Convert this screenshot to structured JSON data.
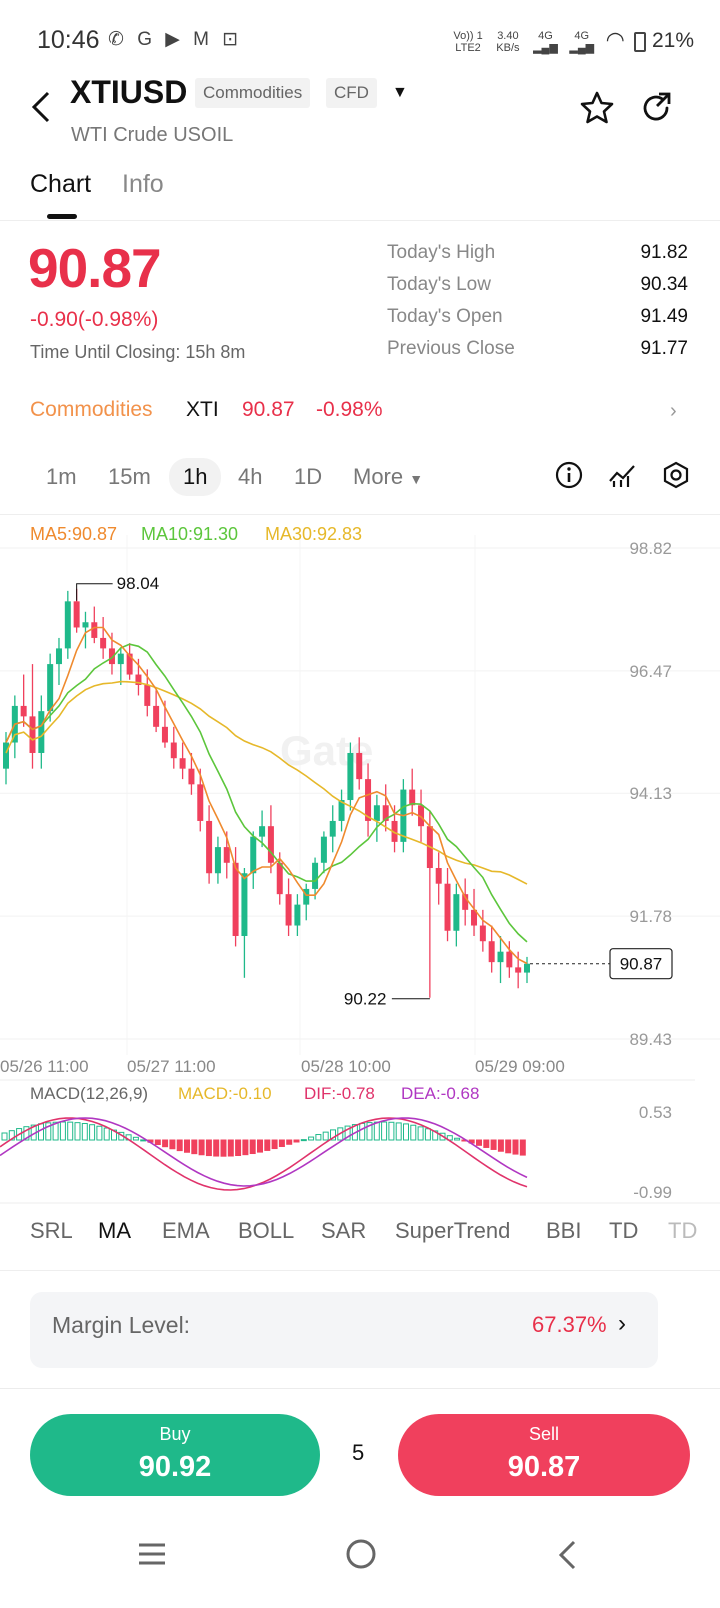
{
  "status_bar": {
    "time": "10:46",
    "apps": "✆ G ▶ M ⊡",
    "network_vo": "Vo)) 1",
    "network_lte": "LTE2",
    "speed_value": "3.40",
    "speed_unit": "KB/s",
    "sig1": "4G",
    "sig2": "4G",
    "battery": "21%"
  },
  "header": {
    "symbol": "XTIUSD",
    "tag1": "Commodities",
    "tag2": "CFD",
    "subtitle": "WTI Crude USOIL"
  },
  "tabs": [
    "Chart",
    "Info"
  ],
  "quote": {
    "price": "90.87",
    "change": "-0.90(-0.98%)",
    "closing_label": "Time Until Closing:",
    "closing_value": "15h 8m",
    "stats": [
      {
        "label": "Today's High",
        "value": "91.82"
      },
      {
        "label": "Today's Low",
        "value": "90.34"
      },
      {
        "label": "Today's Open",
        "value": "91.49"
      },
      {
        "label": "Previous Close",
        "value": "91.77"
      }
    ]
  },
  "commodity_row": {
    "category": "Commodities",
    "code": "XTI",
    "price": "90.87",
    "change": "-0.98%"
  },
  "timeframes": [
    "1m",
    "15m",
    "1h",
    "4h",
    "1D",
    "More"
  ],
  "chart_legend": {
    "ma5": "MA5:90.87",
    "ma10": "MA10:91.30",
    "ma30": "MA30:92.83"
  },
  "macd_legend": {
    "name": "MACD(12,26,9)",
    "macd": "MACD:-0.10",
    "dif": "DIF:-0.78",
    "dea": "DEA:-0.68"
  },
  "indicators": [
    "SRL",
    "MA",
    "EMA",
    "BOLL",
    "SAR",
    "SuperTrend",
    "BBI",
    "TD",
    "TD"
  ],
  "margin": {
    "label": "Margin Level:",
    "value": "67.37%"
  },
  "trade": {
    "buy_label": "Buy",
    "buy_price": "90.92",
    "spread": "5",
    "sell_label": "Sell",
    "sell_price": "90.87"
  },
  "colors": {
    "up": "#1fb98a",
    "down": "#f0405d",
    "ma5": "#ef8a2e",
    "ma10": "#5cc63c",
    "ma30": "#e6b82a",
    "dif": "#e0336b",
    "dea": "#b037c2",
    "accent_orange": "#f2924b"
  },
  "chart_data": {
    "type": "candlestick",
    "y_ticks": [
      "98.82",
      "96.47",
      "94.13",
      "91.78",
      "89.43"
    ],
    "ylim": [
      89.43,
      98.82
    ],
    "x_ticks": [
      "05/26 11:00",
      "05/27 11:00",
      "05/28 10:00",
      "05/29 09:00"
    ],
    "high_marker": "98.04",
    "low_marker": "90.22",
    "last_price": "90.87",
    "macd_ticks": [
      "0.53",
      "-0.99"
    ],
    "candles_ohlc": [
      [
        94.6,
        95.3,
        94.3,
        95.1
      ],
      [
        95.1,
        96.0,
        94.8,
        95.8
      ],
      [
        95.8,
        96.4,
        95.4,
        95.6
      ],
      [
        95.6,
        96.6,
        94.6,
        94.9
      ],
      [
        94.9,
        96.0,
        94.6,
        95.7
      ],
      [
        95.7,
        96.8,
        95.5,
        96.6
      ],
      [
        96.6,
        97.1,
        96.2,
        96.9
      ],
      [
        96.9,
        98.0,
        96.7,
        97.8
      ],
      [
        97.8,
        98.04,
        97.2,
        97.3
      ],
      [
        97.3,
        97.6,
        96.9,
        97.4
      ],
      [
        97.4,
        97.7,
        97.0,
        97.1
      ],
      [
        97.1,
        97.5,
        96.7,
        96.9
      ],
      [
        96.9,
        97.2,
        96.4,
        96.6
      ],
      [
        96.6,
        96.9,
        96.2,
        96.8
      ],
      [
        96.8,
        97.0,
        96.3,
        96.4
      ],
      [
        96.4,
        96.7,
        96.0,
        96.2
      ],
      [
        96.2,
        96.5,
        95.6,
        95.8
      ],
      [
        95.8,
        96.1,
        95.3,
        95.4
      ],
      [
        95.4,
        95.9,
        95.0,
        95.1
      ],
      [
        95.1,
        95.4,
        94.6,
        94.8
      ],
      [
        94.8,
        95.1,
        94.4,
        94.6
      ],
      [
        94.6,
        94.9,
        94.1,
        94.3
      ],
      [
        94.3,
        94.6,
        93.4,
        93.6
      ],
      [
        93.6,
        93.9,
        92.4,
        92.6
      ],
      [
        92.6,
        93.3,
        92.4,
        93.1
      ],
      [
        93.1,
        93.4,
        92.5,
        92.8
      ],
      [
        92.8,
        93.1,
        91.2,
        91.4
      ],
      [
        91.4,
        92.7,
        90.6,
        92.6
      ],
      [
        92.6,
        93.4,
        92.3,
        93.3
      ],
      [
        93.3,
        93.8,
        93.1,
        93.5
      ],
      [
        93.5,
        93.9,
        92.6,
        92.8
      ],
      [
        92.8,
        93.0,
        92.0,
        92.2
      ],
      [
        92.2,
        92.5,
        91.4,
        91.6
      ],
      [
        91.6,
        92.2,
        91.4,
        92.0
      ],
      [
        92.0,
        92.4,
        91.7,
        92.3
      ],
      [
        92.3,
        92.9,
        92.1,
        92.8
      ],
      [
        92.8,
        93.4,
        92.6,
        93.3
      ],
      [
        93.3,
        93.9,
        93.0,
        93.6
      ],
      [
        93.6,
        94.2,
        93.4,
        94.0
      ],
      [
        94.0,
        95.1,
        93.8,
        94.9
      ],
      [
        94.9,
        95.2,
        94.2,
        94.4
      ],
      [
        94.4,
        94.7,
        93.3,
        93.6
      ],
      [
        93.6,
        94.1,
        93.2,
        93.9
      ],
      [
        93.9,
        94.3,
        93.4,
        93.6
      ],
      [
        93.6,
        93.9,
        93.0,
        93.2
      ],
      [
        93.2,
        94.4,
        93.0,
        94.2
      ],
      [
        94.2,
        94.6,
        93.7,
        93.9
      ],
      [
        93.9,
        94.2,
        93.2,
        93.5
      ],
      [
        93.5,
        93.8,
        90.22,
        92.7
      ],
      [
        92.7,
        93.0,
        92.0,
        92.4
      ],
      [
        92.4,
        92.7,
        91.3,
        91.5
      ],
      [
        91.5,
        92.4,
        91.2,
        92.2
      ],
      [
        92.2,
        92.5,
        91.6,
        91.9
      ],
      [
        91.9,
        92.3,
        91.4,
        91.6
      ],
      [
        91.6,
        91.9,
        91.1,
        91.3
      ],
      [
        91.3,
        91.6,
        90.7,
        90.9
      ],
      [
        90.9,
        91.4,
        90.5,
        91.1
      ],
      [
        91.1,
        91.3,
        90.6,
        90.8
      ],
      [
        90.8,
        91.1,
        90.4,
        90.7
      ],
      [
        90.7,
        91.0,
        90.5,
        90.87
      ]
    ]
  }
}
